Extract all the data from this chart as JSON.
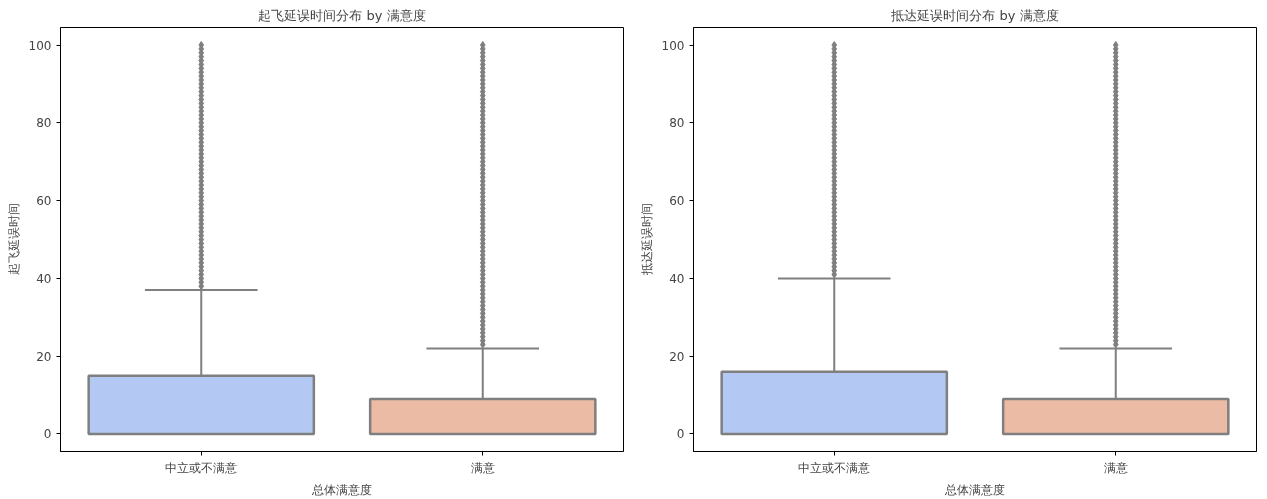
{
  "chart_data": [
    {
      "type": "box",
      "title": "起飞延误时间分布 by 满意度",
      "xlabel": "总体满意度",
      "ylabel": "起飞延误时间",
      "categories": [
        "中立或不满意",
        "满意"
      ],
      "colors": [
        "#b3c8f2",
        "#ecbba5"
      ],
      "ylim": [
        -4.5,
        104.5
      ],
      "yticks": [
        0,
        20,
        40,
        60,
        80,
        100
      ],
      "grid": false,
      "boxes": [
        {
          "low": 0,
          "q1": 0,
          "median": 0,
          "q3": 15,
          "high": 37,
          "outliers": [
            38,
            39,
            40,
            41,
            42,
            43,
            44,
            45,
            46,
            47,
            48,
            49,
            50,
            51,
            52,
            53,
            54,
            55,
            56,
            57,
            58,
            59,
            60,
            61,
            62,
            63,
            64,
            65,
            66,
            67,
            68,
            69,
            70,
            71,
            72,
            73,
            74,
            75,
            76,
            77,
            78,
            79,
            80,
            81,
            82,
            83,
            84,
            85,
            86,
            87,
            88,
            89,
            90,
            91,
            92,
            93,
            94,
            95,
            96,
            97,
            98,
            99,
            100
          ]
        },
        {
          "low": 0,
          "q1": 0,
          "median": 0,
          "q3": 9,
          "high": 22,
          "outliers": [
            23,
            24,
            25,
            26,
            27,
            28,
            29,
            30,
            31,
            32,
            33,
            34,
            35,
            36,
            37,
            38,
            39,
            40,
            41,
            42,
            43,
            44,
            45,
            46,
            47,
            48,
            49,
            50,
            51,
            52,
            53,
            54,
            55,
            56,
            57,
            58,
            59,
            60,
            61,
            62,
            63,
            64,
            65,
            66,
            67,
            68,
            69,
            70,
            71,
            72,
            73,
            74,
            75,
            76,
            77,
            78,
            79,
            80,
            81,
            82,
            83,
            84,
            85,
            86,
            87,
            88,
            89,
            90,
            91,
            92,
            93,
            94,
            95,
            96,
            97,
            98,
            99,
            100
          ]
        }
      ]
    },
    {
      "type": "box",
      "title": "抵达延误时间分布 by 满意度",
      "xlabel": "总体满意度",
      "ylabel": "抵达延误时间",
      "categories": [
        "中立或不满意",
        "满意"
      ],
      "colors": [
        "#b3c8f2",
        "#ecbba5"
      ],
      "ylim": [
        -4.5,
        104.5
      ],
      "yticks": [
        0,
        20,
        40,
        60,
        80,
        100
      ],
      "grid": false,
      "boxes": [
        {
          "low": 0,
          "q1": 0,
          "median": 0,
          "q3": 16,
          "high": 40,
          "outliers": [
            41,
            42,
            43,
            44,
            45,
            46,
            47,
            48,
            49,
            50,
            51,
            52,
            53,
            54,
            55,
            56,
            57,
            58,
            59,
            60,
            61,
            62,
            63,
            64,
            65,
            66,
            67,
            68,
            69,
            70,
            71,
            72,
            73,
            74,
            75,
            76,
            77,
            78,
            79,
            80,
            81,
            82,
            83,
            84,
            85,
            86,
            87,
            88,
            89,
            90,
            91,
            92,
            93,
            94,
            95,
            96,
            97,
            98,
            99,
            100
          ]
        },
        {
          "low": 0,
          "q1": 0,
          "median": 0,
          "q3": 9,
          "high": 22,
          "outliers": [
            23,
            24,
            25,
            26,
            27,
            28,
            29,
            30,
            31,
            32,
            33,
            34,
            35,
            36,
            37,
            38,
            39,
            40,
            41,
            42,
            43,
            44,
            45,
            46,
            47,
            48,
            49,
            50,
            51,
            52,
            53,
            54,
            55,
            56,
            57,
            58,
            59,
            60,
            61,
            62,
            63,
            64,
            65,
            66,
            67,
            68,
            69,
            70,
            71,
            72,
            73,
            74,
            75,
            76,
            77,
            78,
            79,
            80,
            81,
            82,
            83,
            84,
            85,
            86,
            87,
            88,
            89,
            90,
            91,
            92,
            93,
            94,
            95,
            96,
            97,
            98,
            99,
            100
          ]
        }
      ]
    }
  ]
}
